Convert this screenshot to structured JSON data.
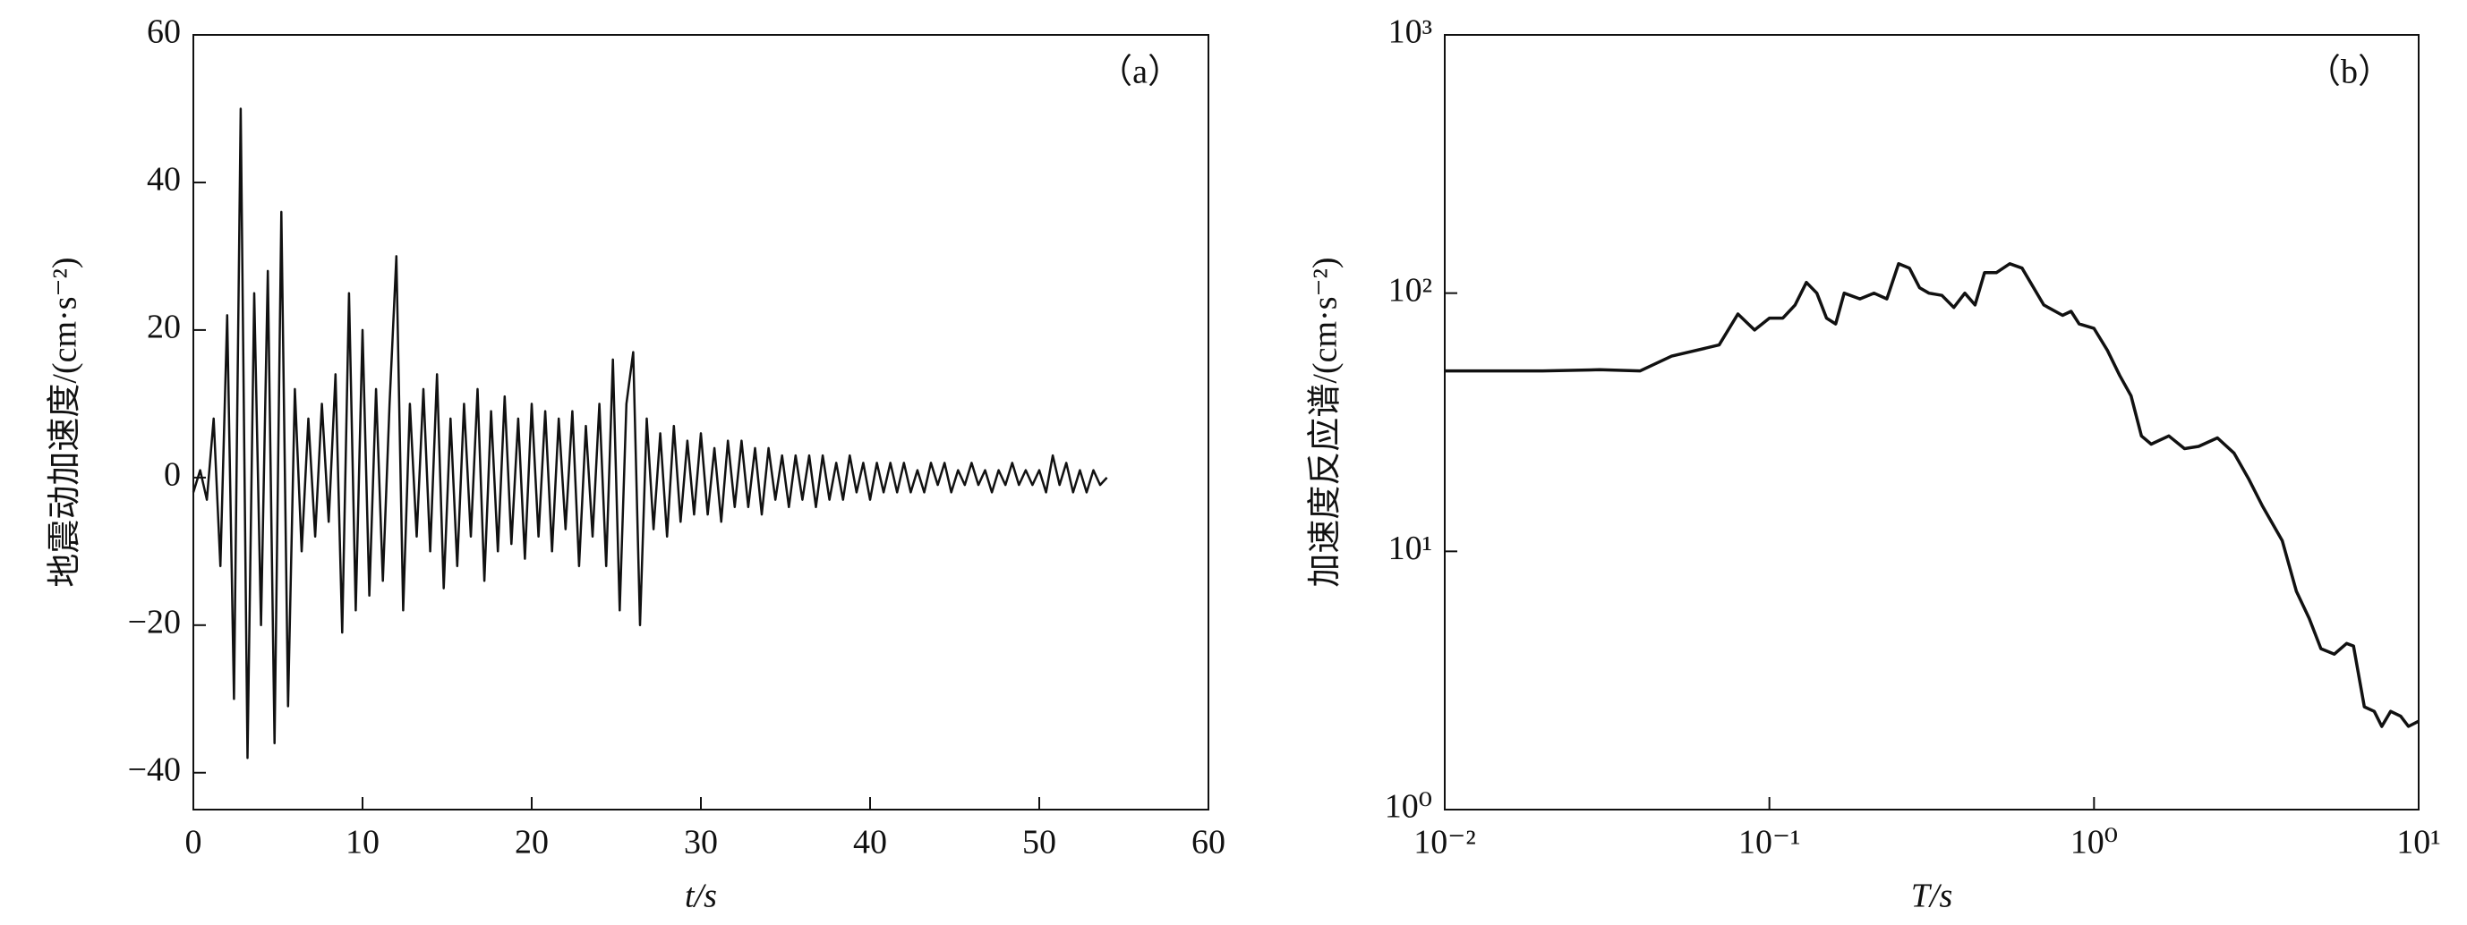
{
  "chart_data": [
    {
      "type": "line",
      "annotation": "（a）",
      "xlabel": "t/s",
      "ylabel": "地震动加速度/(cm·s⁻²)",
      "color": "#111111",
      "log": false,
      "xlim": [
        0,
        60
      ],
      "xticks": [
        0,
        10,
        20,
        30,
        40,
        50,
        60
      ],
      "ylim": [
        -45,
        60
      ],
      "yticks": [
        {
          "value": -40,
          "label": "−40"
        },
        {
          "value": -20,
          "label": "−20"
        },
        0,
        20,
        40,
        60
      ],
      "x": [
        0,
        0.4,
        0.8,
        1.2,
        1.6,
        2.0,
        2.4,
        2.8,
        3.2,
        3.6,
        4.0,
        4.4,
        4.8,
        5.2,
        5.6,
        6.0,
        6.4,
        6.8,
        7.2,
        7.6,
        8.0,
        8.4,
        8.8,
        9.2,
        9.6,
        10.0,
        10.4,
        10.8,
        11.2,
        11.6,
        12.0,
        12.4,
        12.8,
        13.2,
        13.6,
        14.0,
        14.4,
        14.8,
        15.2,
        15.6,
        16.0,
        16.4,
        16.8,
        17.2,
        17.6,
        18.0,
        18.4,
        18.8,
        19.2,
        19.6,
        20.0,
        20.4,
        20.8,
        21.2,
        21.6,
        22.0,
        22.4,
        22.8,
        23.2,
        23.6,
        24.0,
        24.4,
        24.8,
        25.2,
        25.6,
        26.0,
        26.4,
        26.8,
        27.2,
        27.6,
        28.0,
        28.4,
        28.8,
        29.2,
        29.6,
        30.0,
        30.4,
        30.8,
        31.2,
        31.6,
        32.0,
        32.4,
        32.8,
        33.2,
        33.6,
        34.0,
        34.4,
        34.8,
        35.2,
        35.6,
        36.0,
        36.4,
        36.8,
        37.2,
        37.6,
        38.0,
        38.4,
        38.8,
        39.2,
        39.6,
        40.0,
        40.4,
        40.8,
        41.2,
        41.6,
        42.0,
        42.4,
        42.8,
        43.2,
        43.6,
        44.0,
        44.4,
        44.8,
        45.2,
        45.6,
        46.0,
        46.4,
        46.8,
        47.2,
        47.6,
        48.0,
        48.4,
        48.8,
        49.2,
        49.6,
        50.0,
        50.4,
        50.8,
        51.2,
        51.6,
        52.0,
        52.4,
        52.8,
        53.2,
        53.6,
        54.0
      ],
      "values": [
        -2,
        1,
        -3,
        8,
        -12,
        22,
        -30,
        50,
        -38,
        25,
        -20,
        28,
        -36,
        36,
        -31,
        12,
        -10,
        8,
        -8,
        10,
        -6,
        14,
        -21,
        25,
        -18,
        20,
        -16,
        12,
        -14,
        10,
        30,
        -18,
        10,
        -8,
        12,
        -10,
        14,
        -15,
        8,
        -12,
        10,
        -8,
        12,
        -14,
        9,
        -10,
        11,
        -9,
        8,
        -11,
        10,
        -8,
        9,
        -10,
        8,
        -7,
        9,
        -12,
        7,
        -8,
        10,
        -12,
        16,
        -18,
        10,
        17,
        -20,
        8,
        -7,
        6,
        -8,
        7,
        -6,
        5,
        -5,
        6,
        -5,
        4,
        -6,
        5,
        -4,
        5,
        -4,
        4,
        -5,
        4,
        -3,
        3,
        -4,
        3,
        -3,
        3,
        -4,
        3,
        -3,
        2,
        -3,
        3,
        -2,
        2,
        -3,
        2,
        -2,
        2,
        -2,
        2,
        -2,
        1,
        -2,
        2,
        -1,
        2,
        -2,
        1,
        -1,
        2,
        -1,
        1,
        -2,
        1,
        -1,
        2,
        -1,
        1,
        -1,
        1,
        -2,
        3,
        -1,
        2,
        -2,
        1,
        -2,
        1,
        -1,
        0
      ]
    },
    {
      "type": "line",
      "annotation": "（b）",
      "xlabel": "T/s",
      "ylabel": "加速度反应谱/(cm·s⁻²)",
      "color": "#111111",
      "log": true,
      "xlim": [
        0.01,
        10
      ],
      "xticks": [
        {
          "value": 0.01,
          "label": "10⁻²"
        },
        {
          "value": 0.1,
          "label": "10⁻¹"
        },
        {
          "value": 1,
          "label": "10⁰"
        },
        {
          "value": 10,
          "label": "10¹"
        }
      ],
      "ylim": [
        1,
        1000
      ],
      "yticks": [
        {
          "value": 1,
          "label": "10⁰"
        },
        {
          "value": 10,
          "label": "10¹"
        },
        {
          "value": 100,
          "label": "10²"
        },
        {
          "value": 1000,
          "label": "10³"
        }
      ],
      "x": [
        0.01,
        0.02,
        0.03,
        0.04,
        0.05,
        0.07,
        0.08,
        0.09,
        0.1,
        0.11,
        0.12,
        0.13,
        0.14,
        0.15,
        0.16,
        0.17,
        0.19,
        0.21,
        0.23,
        0.25,
        0.27,
        0.29,
        0.31,
        0.34,
        0.37,
        0.4,
        0.43,
        0.46,
        0.5,
        0.55,
        0.6,
        0.7,
        0.8,
        0.85,
        0.9,
        1.0,
        1.1,
        1.2,
        1.3,
        1.4,
        1.5,
        1.7,
        1.9,
        2.1,
        2.4,
        2.7,
        3.0,
        3.3,
        3.8,
        4.2,
        4.6,
        5.0,
        5.5,
        6.0,
        6.3,
        6.8,
        7.3,
        7.7,
        8.2,
        8.8,
        9.3,
        10
      ],
      "values": [
        50,
        50,
        50.5,
        50,
        57,
        63,
        83,
        72,
        80,
        80,
        90,
        110,
        100,
        80,
        76,
        100,
        95,
        100,
        95,
        130,
        125,
        105,
        100,
        98,
        88,
        100,
        90,
        120,
        120,
        130,
        125,
        90,
        82,
        85,
        76,
        73,
        60,
        48,
        40,
        28,
        26,
        28,
        25,
        25.5,
        27.5,
        24,
        19,
        15,
        11,
        7,
        5.5,
        4.2,
        4,
        4.4,
        4.3,
        2.5,
        2.4,
        2.1,
        2.4,
        2.3,
        2.1,
        2.2
      ]
    }
  ]
}
